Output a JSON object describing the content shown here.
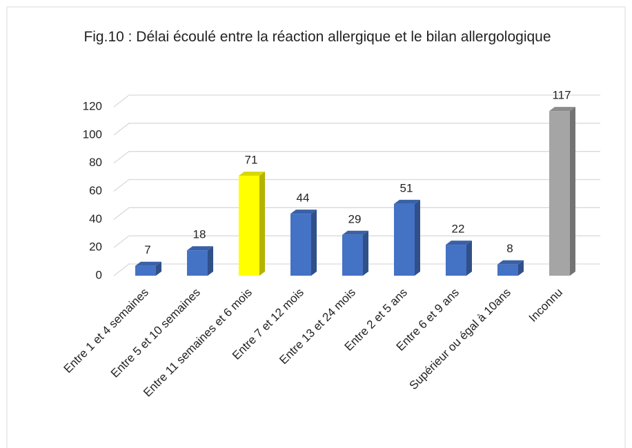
{
  "chart_data": {
    "type": "bar3d",
    "title": "Fig.10 : Délai écoulé entre la réaction allergique et le bilan allergologique",
    "categories": [
      "Entre 1 et 4 semaines",
      "Entre 5 et 10 semaines",
      "Entre 11 semaines et 6 mois",
      "Entre 7 et 12 mois",
      "Entre 13 et 24 mois",
      "Entre 2 et 5 ans",
      "Entre 6 et 9 ans",
      "Supérieur ou égal à 10ans",
      "Inconnu"
    ],
    "values": [
      7,
      18,
      71,
      44,
      29,
      51,
      22,
      8,
      117
    ],
    "colors": [
      "#4472c4",
      "#4472c4",
      "#ffff00",
      "#4472c4",
      "#4472c4",
      "#4472c4",
      "#4472c4",
      "#4472c4",
      "#a5a5a5"
    ],
    "ylim": [
      0,
      120
    ],
    "yticks": [
      0,
      20,
      40,
      60,
      80,
      100,
      120
    ],
    "grid": true
  }
}
